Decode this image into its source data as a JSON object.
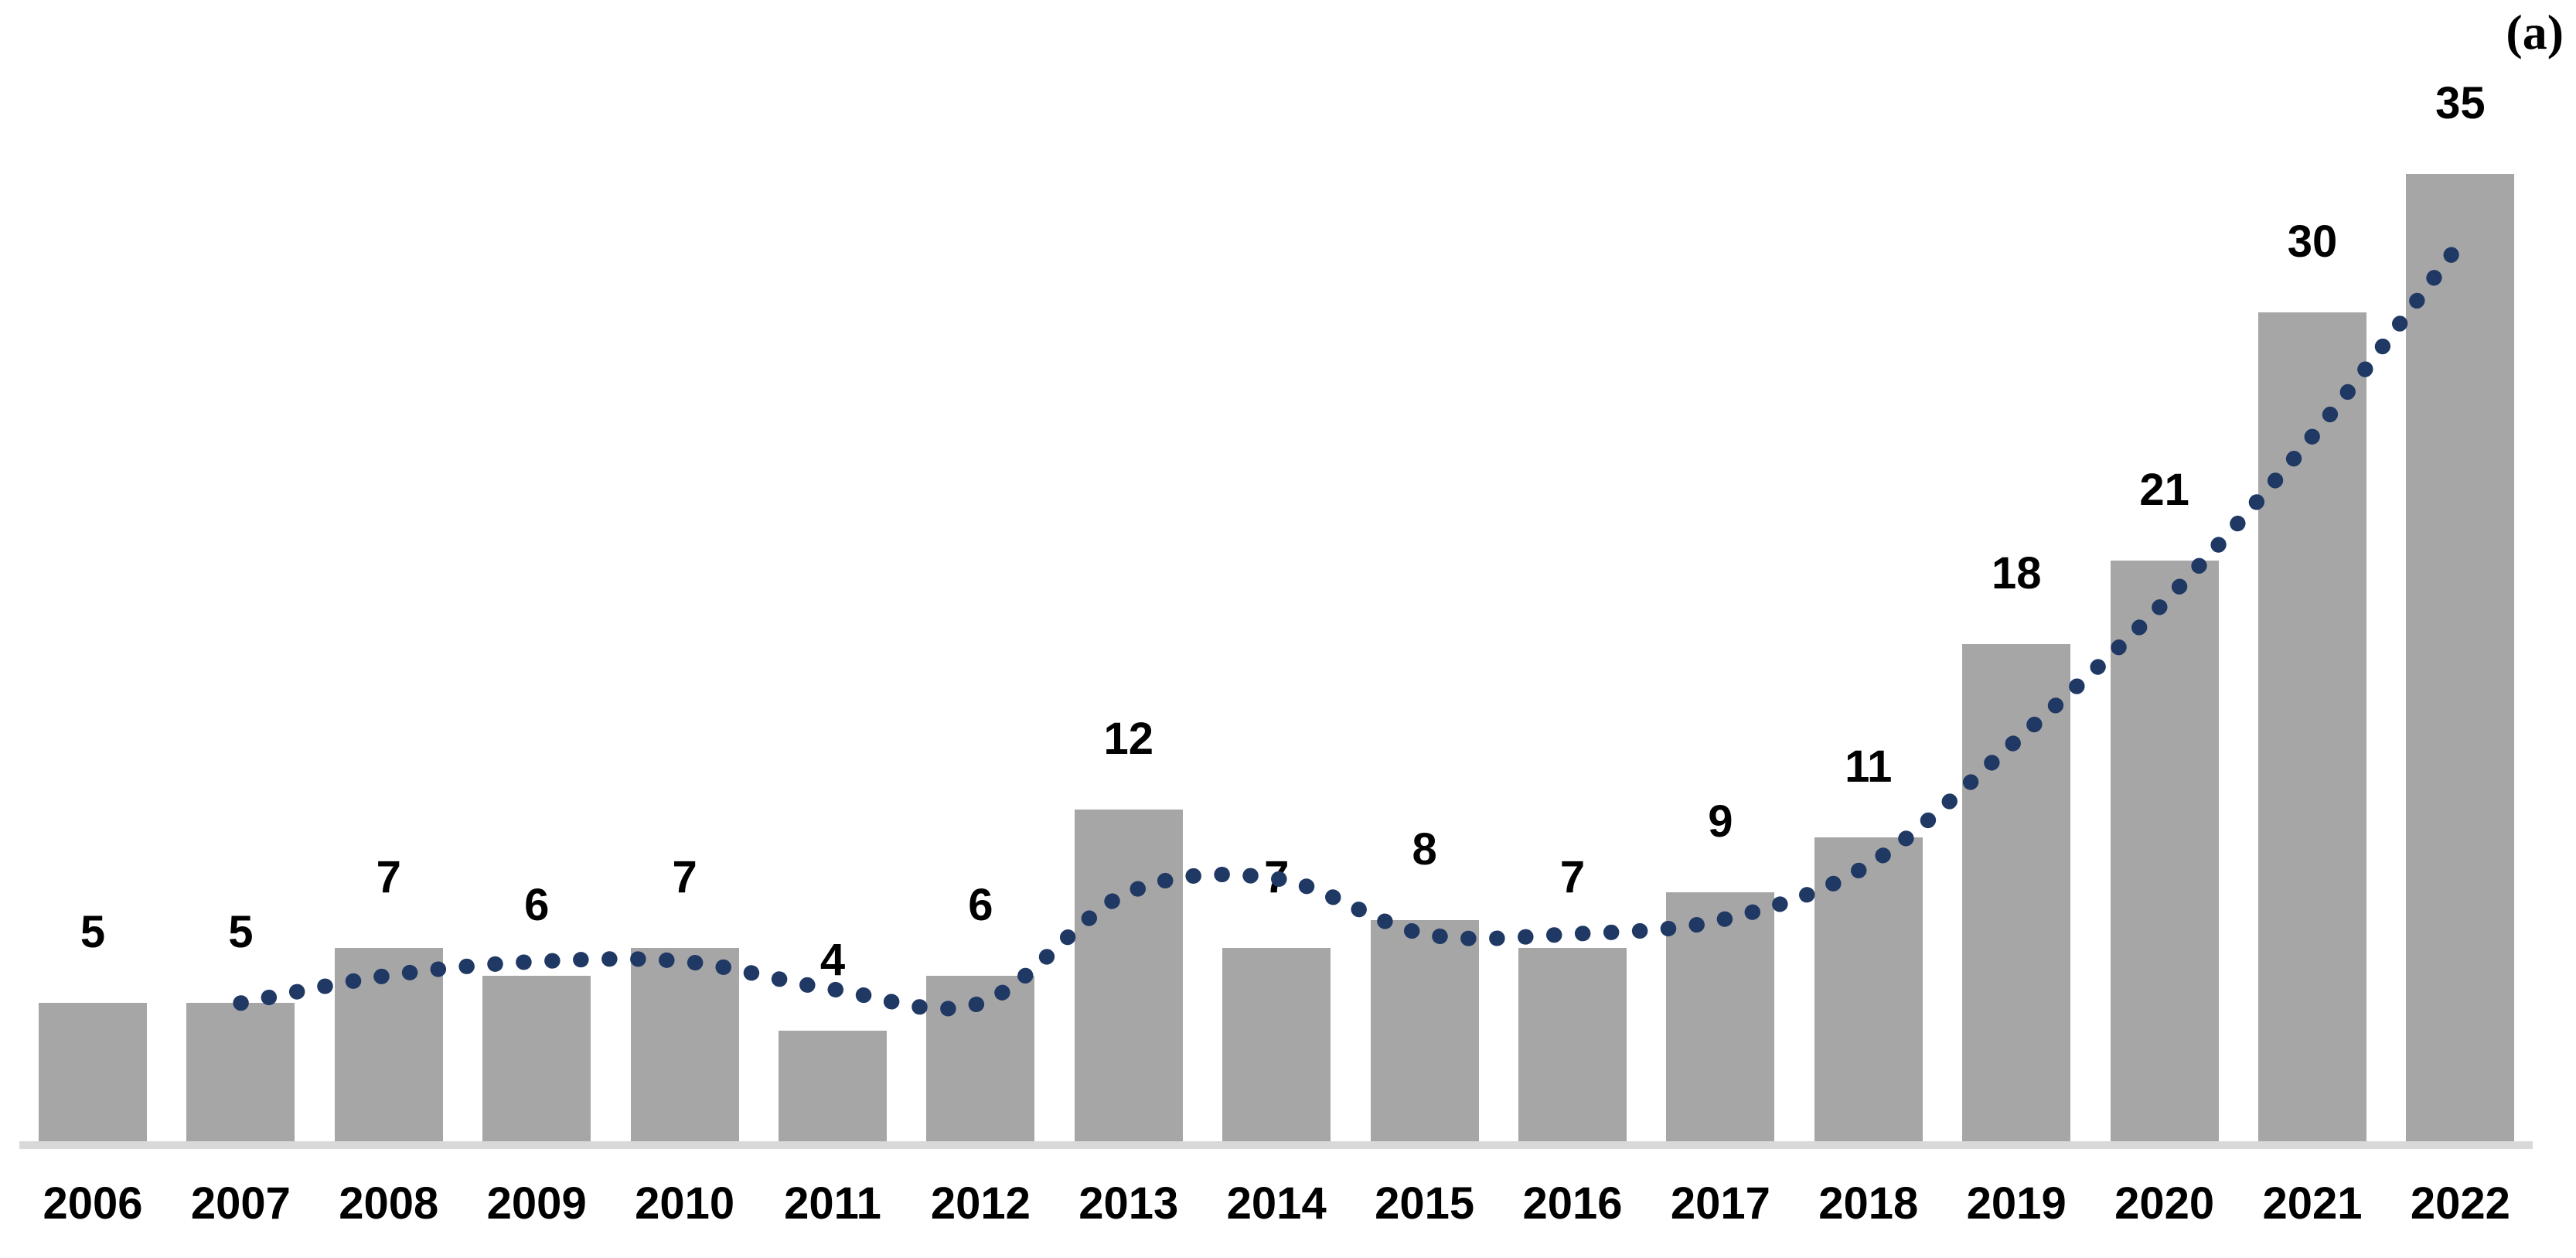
{
  "panel_label": "(a)",
  "chart_data": {
    "type": "bar",
    "title": "",
    "xlabel": "",
    "ylabel": "",
    "categories": [
      "2006",
      "2007",
      "2008",
      "2009",
      "2010",
      "2011",
      "2012",
      "2013",
      "2014",
      "2015",
      "2016",
      "2017",
      "2018",
      "2019",
      "2020",
      "2021",
      "2022"
    ],
    "values": [
      5,
      5,
      7,
      6,
      7,
      4,
      6,
      12,
      7,
      8,
      7,
      9,
      11,
      18,
      21,
      30,
      35
    ],
    "data_labels": [
      "5",
      "5",
      "7",
      "6",
      "7",
      "4",
      "6",
      "12",
      "7",
      "8",
      "7",
      "9",
      "11",
      "18",
      "21",
      "30",
      "35"
    ],
    "ylim": [
      0,
      40
    ],
    "grid": false,
    "legend": false,
    "y_axis_visible": false,
    "bar_color": "#a6a6a6",
    "axis_line_color": "#d9d9d9",
    "label_color": "#000000",
    "trendline": {
      "type": "moving_average",
      "period": 2,
      "style": "dotted",
      "color": "#1f3864",
      "start_category": "2007",
      "values": [
        5.0,
        6.0,
        6.5,
        6.5,
        5.5,
        5.0,
        9.0,
        9.5,
        7.5,
        7.5,
        8.0,
        10.0,
        14.5,
        19.5,
        25.5,
        32.5
      ]
    }
  }
}
